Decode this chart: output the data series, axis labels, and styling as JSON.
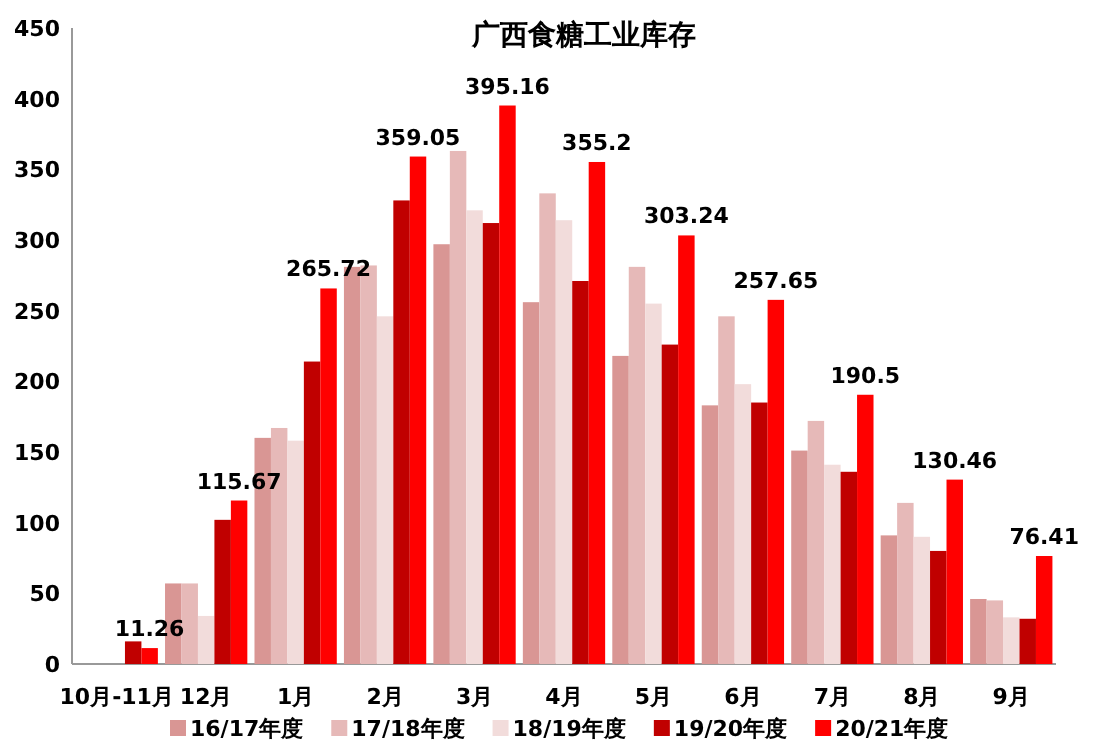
{
  "chart_data": {
    "type": "bar",
    "title": "广西食糖工业库存",
    "categories": [
      "10月-11月",
      "12月",
      "1月",
      "2月",
      "3月",
      "4月",
      "5月",
      "6月",
      "7月",
      "8月",
      "9月"
    ],
    "series": [
      {
        "name": "16/17年度",
        "color": "#d99694",
        "values": [
          null,
          57,
          160,
          281,
          297,
          256,
          218,
          183,
          151,
          91,
          46
        ]
      },
      {
        "name": "17/18年度",
        "color": "#e6b9b8",
        "values": [
          null,
          57,
          167,
          282,
          363,
          333,
          281,
          246,
          172,
          114,
          45
        ]
      },
      {
        "name": "18/19年度",
        "color": "#f2dcdb",
        "values": [
          null,
          34,
          158,
          246,
          321,
          314,
          255,
          198,
          141,
          90,
          33
        ]
      },
      {
        "name": "19/20年度",
        "color": "#c00000",
        "values": [
          16,
          102,
          214,
          328,
          312,
          271,
          226,
          185,
          136,
          80,
          32
        ]
      },
      {
        "name": "20/21年度",
        "color": "#ff0000",
        "values": [
          11.26,
          115.67,
          265.72,
          359.05,
          395.16,
          355.2,
          303.24,
          257.65,
          190.5,
          130.46,
          76.41
        ],
        "value_labels": [
          "11.26",
          "115.67",
          "265.72",
          "359.05",
          "395.16",
          "355.2",
          "303.24",
          "257.65",
          "190.5",
          "130.46",
          "76.41"
        ]
      }
    ],
    "ylim": [
      0,
      450
    ],
    "yticks": [
      0,
      50,
      100,
      150,
      200,
      250,
      300,
      350,
      400,
      450
    ],
    "grid": false,
    "legend": "bottom"
  }
}
